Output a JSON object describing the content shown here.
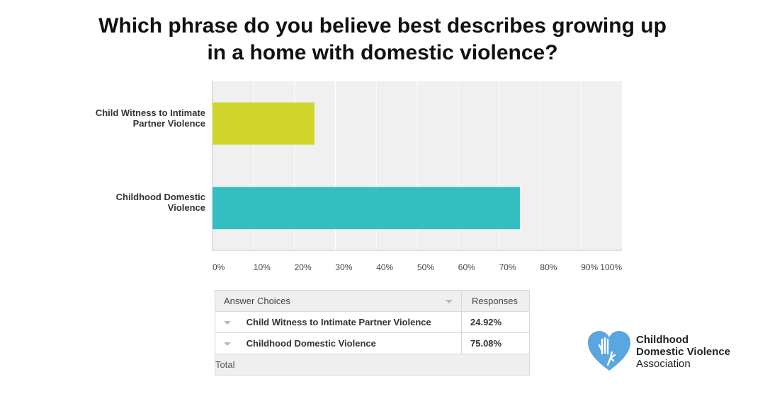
{
  "title_lines": [
    "Which phrase do you believe best describes growing up",
    "in a home with domestic violence?"
  ],
  "chart_data": {
    "type": "bar",
    "orientation": "horizontal",
    "categories": [
      "Child Witness to Intimate Partner Violence",
      "Childhood Domestic Violence"
    ],
    "category_label_lines": [
      [
        "Child Witness to Intimate",
        "Partner Violence"
      ],
      [
        "Childhood Domestic",
        "Violence"
      ]
    ],
    "values": [
      24.92,
      75.08
    ],
    "colors": [
      "#cfd52b",
      "#35bec0"
    ],
    "xlim": [
      0,
      100
    ],
    "ticks": [
      0,
      10,
      20,
      30,
      40,
      50,
      60,
      70,
      80,
      90,
      100
    ],
    "tick_labels": [
      "0%",
      "10%",
      "20%",
      "30%",
      "40%",
      "50%",
      "60%",
      "70%",
      "80%",
      "90%",
      "100%"
    ],
    "grid": true
  },
  "table": {
    "headers": [
      "Answer Choices",
      "Responses"
    ],
    "rows": [
      {
        "choice": "Child Witness to Intimate Partner Violence",
        "response": "24.92%"
      },
      {
        "choice": "Childhood Domestic Violence",
        "response": "75.08%"
      }
    ],
    "total_label": "Total"
  },
  "logo": {
    "line1": "Childhood",
    "line2": "Domestic Violence",
    "line3": "Association",
    "color": "#5aa6e0"
  }
}
